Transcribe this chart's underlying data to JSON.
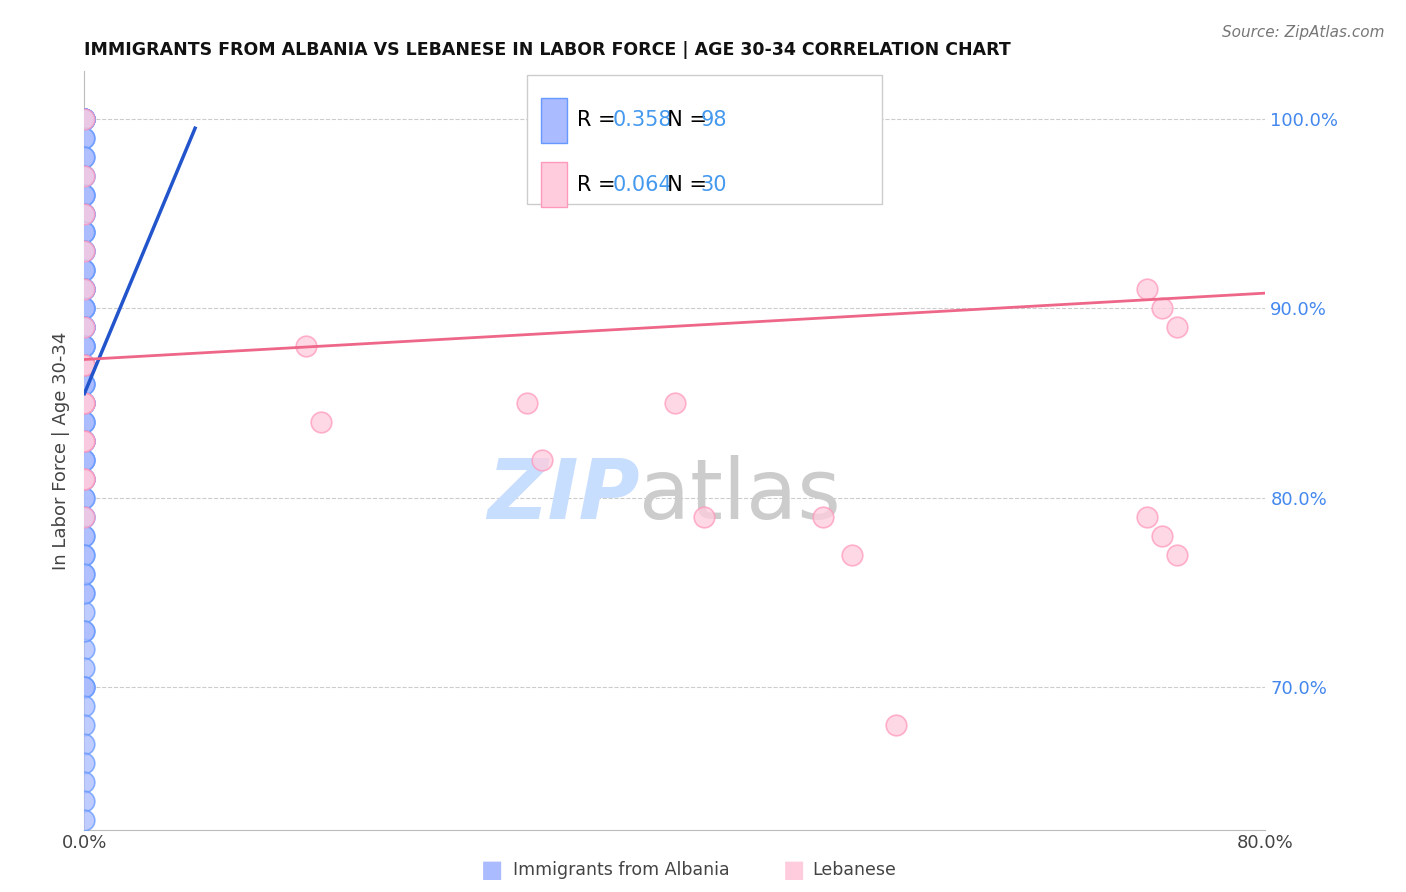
{
  "title": "IMMIGRANTS FROM ALBANIA VS LEBANESE IN LABOR FORCE | AGE 30-34 CORRELATION CHART",
  "source": "Source: ZipAtlas.com",
  "ylabel": "In Labor Force | Age 30-34",
  "xlim": [
    0.0,
    0.8
  ],
  "ylim": [
    0.625,
    1.025
  ],
  "yticks": [
    0.7,
    0.8,
    0.9,
    1.0
  ],
  "ytick_labels": [
    "70.0%",
    "80.0%",
    "90.0%",
    "100.0%"
  ],
  "albania_R": "0.358",
  "albania_N": "98",
  "lebanese_R": "0.064",
  "lebanese_N": "30",
  "albania_color": "#6699ff",
  "albania_fill": "#aabbff",
  "lebanese_color": "#ff99bb",
  "lebanese_fill": "#ffccdd",
  "albania_line_color": "#2255cc",
  "lebanese_line_color": "#ee6688",
  "grid_color": "#cccccc",
  "grid_style": "--",
  "watermark_zip_color": "#c8deff",
  "watermark_atlas_color": "#cccccc",
  "bg_color": "#ffffff",
  "albania_scatter_x": [
    0.0,
    0.0,
    0.0,
    0.0,
    0.0,
    0.0,
    0.0,
    0.0,
    0.0,
    0.0,
    0.0,
    0.0,
    0.0,
    0.0,
    0.0,
    0.0,
    0.0,
    0.0,
    0.0,
    0.0,
    0.0,
    0.0,
    0.0,
    0.0,
    0.0,
    0.0,
    0.0,
    0.0,
    0.0,
    0.0,
    0.0,
    0.0,
    0.0,
    0.0,
    0.0,
    0.0,
    0.0,
    0.0,
    0.0,
    0.0,
    0.0,
    0.0,
    0.0,
    0.0,
    0.0,
    0.0,
    0.0,
    0.0,
    0.0,
    0.0,
    0.0,
    0.0,
    0.0,
    0.0,
    0.0,
    0.0,
    0.0,
    0.0,
    0.0,
    0.0,
    0.0,
    0.0,
    0.0,
    0.0,
    0.0,
    0.0,
    0.0,
    0.0,
    0.0,
    0.0,
    0.0,
    0.0,
    0.0,
    0.0,
    0.0,
    0.0,
    0.0,
    0.0,
    0.0,
    0.0,
    0.0,
    0.0,
    0.0,
    0.0,
    0.0,
    0.0,
    0.0,
    0.0,
    0.0,
    0.0,
    0.0,
    0.0,
    0.0,
    0.0,
    0.0,
    0.0,
    0.0,
    0.0
  ],
  "albania_scatter_y": [
    1.0,
    1.0,
    1.0,
    1.0,
    1.0,
    1.0,
    1.0,
    1.0,
    1.0,
    0.99,
    0.99,
    0.98,
    0.98,
    0.97,
    0.97,
    0.96,
    0.96,
    0.96,
    0.95,
    0.95,
    0.95,
    0.94,
    0.94,
    0.94,
    0.93,
    0.93,
    0.93,
    0.92,
    0.92,
    0.92,
    0.91,
    0.91,
    0.91,
    0.91,
    0.9,
    0.9,
    0.9,
    0.9,
    0.89,
    0.89,
    0.89,
    0.89,
    0.88,
    0.88,
    0.88,
    0.88,
    0.87,
    0.87,
    0.87,
    0.87,
    0.86,
    0.86,
    0.86,
    0.85,
    0.85,
    0.85,
    0.84,
    0.84,
    0.84,
    0.83,
    0.83,
    0.82,
    0.82,
    0.81,
    0.81,
    0.8,
    0.8,
    0.79,
    0.79,
    0.78,
    0.78,
    0.77,
    0.76,
    0.75,
    0.74,
    0.73,
    0.72,
    0.71,
    0.7,
    0.7,
    0.7,
    0.69,
    0.68,
    0.67,
    0.66,
    0.65,
    0.64,
    0.63,
    0.83,
    0.81,
    0.82,
    0.77,
    0.75,
    0.73,
    0.87,
    0.85,
    0.83,
    0.76
  ],
  "lebanese_scatter_x": [
    0.0,
    0.0,
    0.0,
    0.0,
    0.0,
    0.0,
    0.0,
    0.0,
    0.0,
    0.0,
    0.0,
    0.0,
    0.0,
    0.0,
    0.0,
    0.15,
    0.16,
    0.3,
    0.31,
    0.4,
    0.42,
    0.5,
    0.52,
    0.55,
    0.72,
    0.73,
    0.74,
    0.72,
    0.73,
    0.74
  ],
  "lebanese_scatter_y": [
    1.0,
    0.97,
    0.95,
    0.93,
    0.91,
    0.89,
    0.87,
    0.85,
    0.83,
    0.81,
    0.79,
    0.87,
    0.85,
    0.83,
    0.81,
    0.88,
    0.84,
    0.85,
    0.82,
    0.85,
    0.79,
    0.79,
    0.77,
    0.68,
    0.91,
    0.9,
    0.89,
    0.79,
    0.78,
    0.77
  ],
  "alb_line_x0": 0.0,
  "alb_line_x1": 0.075,
  "alb_line_y0": 0.855,
  "alb_line_y1": 0.995,
  "leb_line_x0": 0.0,
  "leb_line_x1": 0.8,
  "leb_line_y0": 0.873,
  "leb_line_y1": 0.908
}
